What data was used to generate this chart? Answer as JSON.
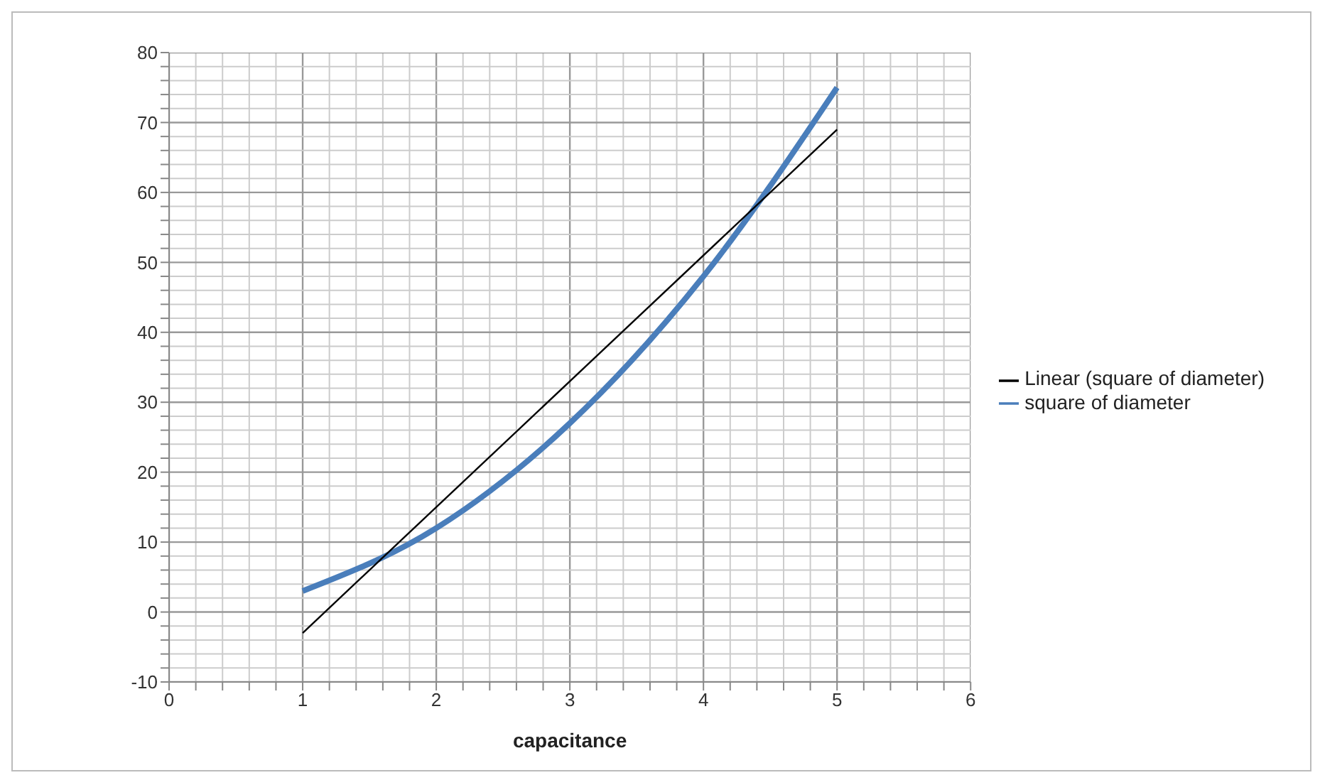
{
  "chart_data": {
    "type": "line",
    "xlabel": "capacitance",
    "series": [
      {
        "name": "square of diameter",
        "color": "#4a7ebb",
        "x": [
          1,
          2,
          3,
          4,
          5
        ],
        "values": [
          3,
          12,
          27,
          48,
          75
        ]
      },
      {
        "name": "Linear (square of diameter)",
        "color": "#000000",
        "x": [
          1,
          5
        ],
        "values": [
          -3,
          69
        ]
      }
    ],
    "xlim": [
      0,
      6
    ],
    "xticks": [
      0,
      {
        "value": 0.2,
        "label": null
      },
      {
        "value": 0.4,
        "label": null
      },
      {
        "value": 0.6,
        "label": null
      },
      {
        "value": 0.8,
        "label": null
      },
      1,
      {
        "value": 1.2,
        "label": null
      },
      {
        "value": 1.4,
        "label": null
      },
      {
        "value": 1.6,
        "label": null
      },
      {
        "value": 1.8,
        "label": null
      },
      2,
      {
        "value": 2.2,
        "label": null
      },
      {
        "value": 2.4,
        "label": null
      },
      {
        "value": 2.6,
        "label": null
      },
      {
        "value": 2.8,
        "label": null
      },
      3,
      {
        "value": 3.2,
        "label": null
      },
      {
        "value": 3.4,
        "label": null
      },
      {
        "value": 3.6,
        "label": null
      },
      {
        "value": 3.8,
        "label": null
      },
      4,
      {
        "value": 4.2,
        "label": null
      },
      {
        "value": 4.4,
        "label": null
      },
      {
        "value": 4.6,
        "label": null
      },
      {
        "value": 4.8,
        "label": null
      },
      5,
      {
        "value": 5.2,
        "label": null
      },
      {
        "value": 5.4,
        "label": null
      },
      {
        "value": 5.6,
        "label": null
      },
      {
        "value": 5.8,
        "label": null
      },
      6
    ],
    "ylim": [
      -10,
      80
    ],
    "yticks": [
      -10,
      {
        "value": -8,
        "label": null
      },
      {
        "value": -6,
        "label": null
      },
      {
        "value": -4,
        "label": null
      },
      {
        "value": -2,
        "label": null
      },
      0,
      {
        "value": 2,
        "label": null
      },
      {
        "value": 4,
        "label": null
      },
      {
        "value": 6,
        "label": null
      },
      {
        "value": 8,
        "label": null
      },
      10,
      {
        "value": 12,
        "label": null
      },
      {
        "value": 14,
        "label": null
      },
      {
        "value": 16,
        "label": null
      },
      {
        "value": 18,
        "label": null
      },
      20,
      {
        "value": 22,
        "label": null
      },
      {
        "value": 24,
        "label": null
      },
      {
        "value": 26,
        "label": null
      },
      {
        "value": 28,
        "label": null
      },
      30,
      {
        "value": 32,
        "label": null
      },
      {
        "value": 34,
        "label": null
      },
      {
        "value": 36,
        "label": null
      },
      {
        "value": 38,
        "label": null
      },
      40,
      {
        "value": 42,
        "label": null
      },
      {
        "value": 44,
        "label": null
      },
      {
        "value": 46,
        "label": null
      },
      {
        "value": 48,
        "label": null
      },
      50,
      {
        "value": 52,
        "label": null
      },
      {
        "value": 54,
        "label": null
      },
      {
        "value": 56,
        "label": null
      },
      {
        "value": 58,
        "label": null
      },
      60,
      {
        "value": 62,
        "label": null
      },
      {
        "value": 64,
        "label": null
      },
      {
        "value": 66,
        "label": null
      },
      {
        "value": 68,
        "label": null
      },
      70,
      {
        "value": 72,
        "label": null
      },
      {
        "value": 74,
        "label": null
      },
      {
        "value": 76,
        "label": null
      },
      {
        "value": 78,
        "label": null
      },
      80
    ],
    "grid": true,
    "legend": "right",
    "marker": "none"
  }
}
